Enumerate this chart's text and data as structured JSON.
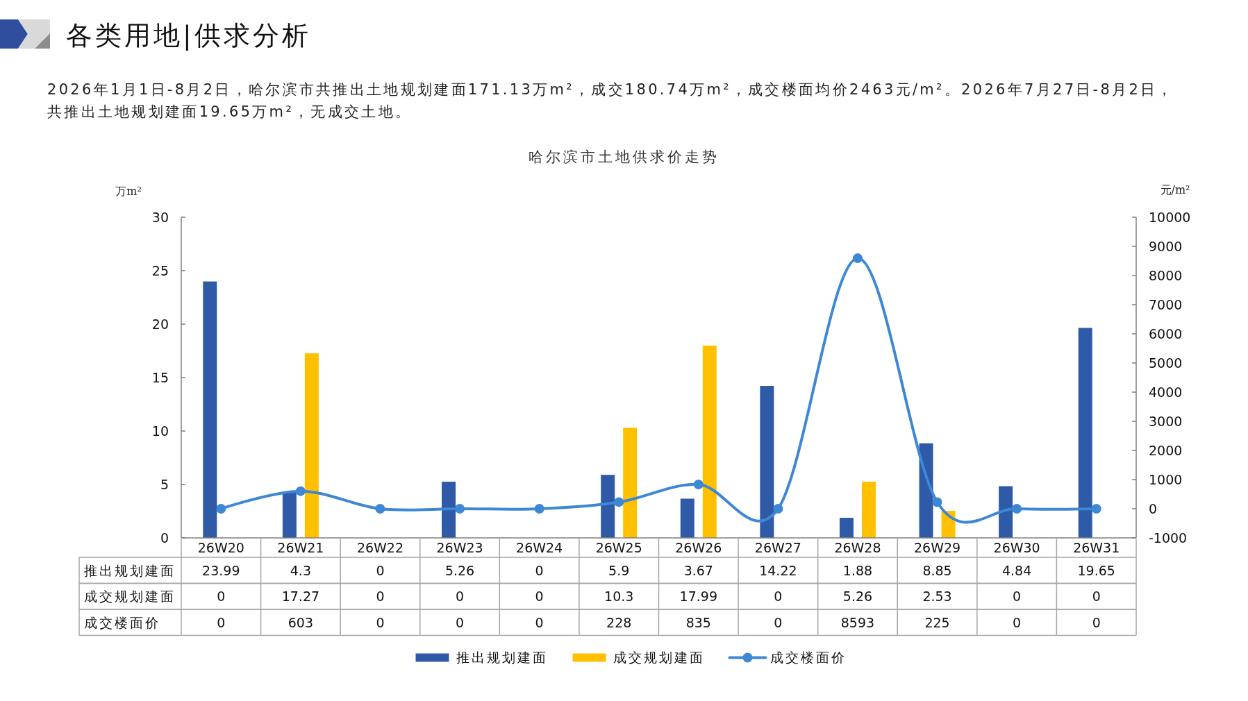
{
  "chart_data": {
    "type": "bar",
    "title": "哈尔滨市土地供求价走势",
    "subtitle": "2026年1月1日-8月2日，哈尔滨市共推出土地规划建面171.13万m²，成交180.74万m²，成交楼面均价2463元/m²。2026年7月27日-8月2日，共推出土地规划建面19.65万m²，无成交土地。",
    "annotations": [
      "各类用地|供求分析"
    ],
    "ylabel": "万m²",
    "y2label": "元/m²",
    "categories": [
      "26W20",
      "26W21",
      "26W22",
      "26W23",
      "26W24",
      "26W25",
      "26W26",
      "26W27",
      "26W28",
      "26W29",
      "26W30",
      "26W31"
    ],
    "series": [
      {
        "name": "推出规划建面",
        "color": "#2e5aa7",
        "values": [
          23.99,
          4.3,
          0,
          5.26,
          0,
          5.9,
          3.67,
          14.22,
          1.88,
          8.85,
          4.84,
          19.65
        ]
      },
      {
        "name": "成交规划建面",
        "color": "#ffc000",
        "values": [
          0,
          17.27,
          0,
          0,
          0,
          10.3,
          17.99,
          0,
          5.26,
          2.53,
          0,
          0
        ]
      },
      {
        "name": "成交楼面价",
        "type": "line",
        "axis": "y2",
        "color": "#3d87d4",
        "values": [
          0,
          603,
          0,
          0,
          0,
          228,
          835,
          0,
          8593,
          225,
          0,
          0
        ]
      }
    ],
    "ylim": [
      0,
      30
    ],
    "yticks": [
      0,
      5,
      10,
      15,
      20,
      25,
      30
    ],
    "y2lim": [
      -1000,
      10000
    ],
    "y2ticks": [
      -1000,
      0,
      1000,
      2000,
      3000,
      4000,
      5000,
      6000,
      7000,
      8000,
      9000,
      10000
    ],
    "data_labels": true,
    "legend": "bottom",
    "marker": "circle",
    "line_style": "solid"
  }
}
